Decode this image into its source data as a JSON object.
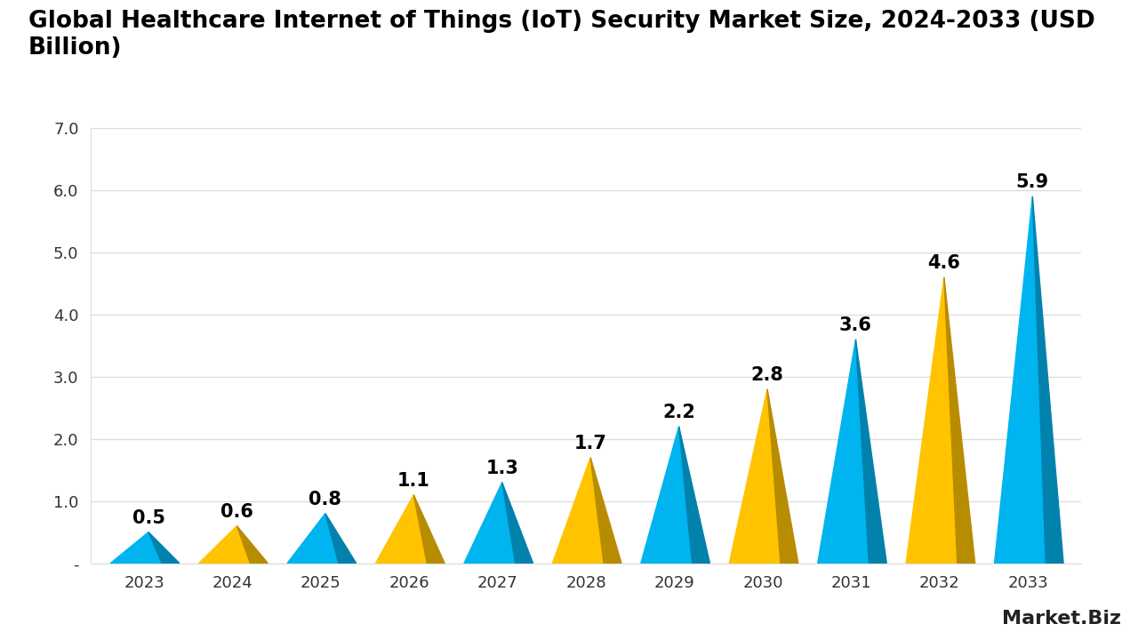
{
  "chart_data": {
    "type": "bar",
    "title": "Global Healthcare Internet of Things (IoT) Security Market Size, 2024-2033 (USD Billion)",
    "categories": [
      "2023",
      "2024",
      "2025",
      "2026",
      "2027",
      "2028",
      "2029",
      "2030",
      "2031",
      "2032",
      "2033"
    ],
    "values": [
      0.5,
      0.6,
      0.8,
      1.1,
      1.3,
      1.7,
      2.2,
      2.8,
      3.6,
      4.6,
      5.9
    ],
    "colors": [
      "#00B4F0",
      "#FFC300",
      "#00B4F0",
      "#FFC300",
      "#00B4F0",
      "#FFC300",
      "#00B4F0",
      "#FFC300",
      "#00B4F0",
      "#FFC300",
      "#00B4F0"
    ],
    "ylim": [
      0,
      7
    ],
    "yticks": [
      {
        "value": 0,
        "label": "-"
      },
      {
        "value": 1,
        "label": "1.0"
      },
      {
        "value": 2,
        "label": "2.0"
      },
      {
        "value": 3,
        "label": "3.0"
      },
      {
        "value": 4,
        "label": "4.0"
      },
      {
        "value": 5,
        "label": "5.0"
      },
      {
        "value": 6,
        "label": "6.0"
      },
      {
        "value": 7,
        "label": "7.0"
      }
    ],
    "grid": true,
    "data_labels": true,
    "annotations": [
      "Market.Biz"
    ]
  }
}
